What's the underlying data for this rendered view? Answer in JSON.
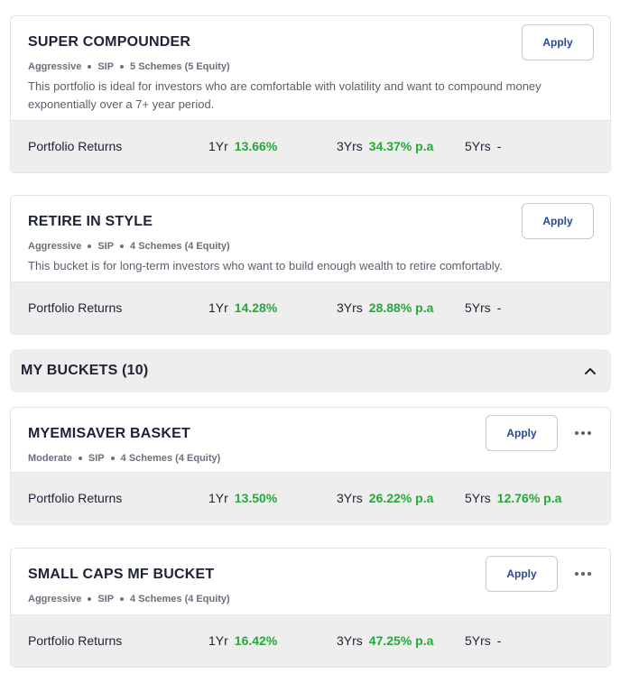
{
  "featured": [
    {
      "title": "SUPER COMPOUNDER",
      "risk": "Aggressive",
      "mode": "SIP",
      "schemes": "5 Schemes (5 Equity)",
      "description": "This portfolio is ideal for investors who are comfortable with volatility and want to compound money exponentially over a 7+ year period.",
      "apply_label": "Apply",
      "returns_label": "Portfolio Returns",
      "r1_label": "1Yr",
      "r1": "13.66%",
      "r3_label": "3Yrs",
      "r3": "34.37% p.a",
      "r5_label": "5Yrs",
      "r5": "-"
    },
    {
      "title": "RETIRE IN STYLE",
      "risk": "Aggressive",
      "mode": "SIP",
      "schemes": "4 Schemes (4 Equity)",
      "description": "This bucket is for long-term investors who want to build enough wealth to retire comfortably.",
      "apply_label": "Apply",
      "returns_label": "Portfolio Returns",
      "r1_label": "1Yr",
      "r1": "14.28%",
      "r3_label": "3Yrs",
      "r3": "28.88% p.a",
      "r5_label": "5Yrs",
      "r5": "-"
    }
  ],
  "my_buckets": {
    "header": "MY BUCKETS (10)",
    "items": [
      {
        "title": "MYEMISAVER BASKET",
        "risk": "Moderate",
        "mode": "SIP",
        "schemes": "4 Schemes (4 Equity)",
        "apply_label": "Apply",
        "returns_label": "Portfolio Returns",
        "r1_label": "1Yr",
        "r1": "13.50%",
        "r3_label": "3Yrs",
        "r3": "26.22% p.a",
        "r5_label": "5Yrs",
        "r5": "12.76% p.a"
      },
      {
        "title": "SMALL CAPS MF BUCKET",
        "risk": "Aggressive",
        "mode": "SIP",
        "schemes": "4 Schemes (4 Equity)",
        "apply_label": "Apply",
        "returns_label": "Portfolio Returns",
        "r1_label": "1Yr",
        "r1": "16.42%",
        "r3_label": "3Yrs",
        "r3": "47.25% p.a",
        "r5_label": "5Yrs",
        "r5": "-"
      }
    ]
  },
  "colors": {
    "positive": "#26a83b",
    "accent": "#2a4a8f",
    "panel": "#eeeeee"
  },
  "icons": {
    "collapse": "chevron-up-icon",
    "more": "more-horizontal-icon"
  }
}
